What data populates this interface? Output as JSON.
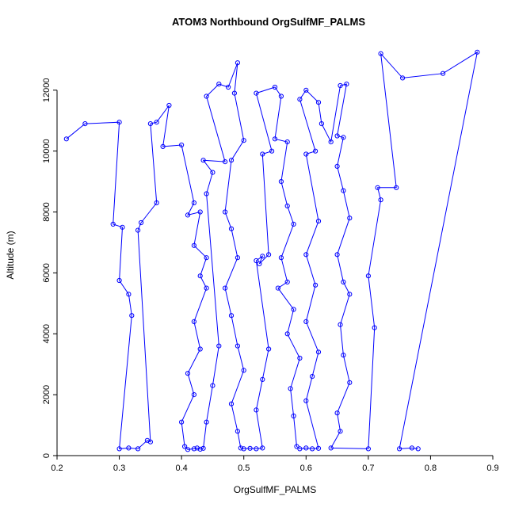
{
  "chart_data": {
    "type": "line",
    "marker": "open-circle",
    "line_color": "#0000ff",
    "title": "ATOM3 Northbound OrgSulfMF_PALMS",
    "xlabel": "OrgSulfMF_PALMS",
    "ylabel": "Altitude (m)",
    "xlim": [
      0.2,
      0.9
    ],
    "ylim": [
      0,
      13400
    ],
    "x_ticks": [
      "0.2",
      "0.3",
      "0.4",
      "0.5",
      "0.6",
      "0.7",
      "0.8",
      "0.9"
    ],
    "y_ticks": [
      "0",
      "2000",
      "4000",
      "6000",
      "8000",
      "10000",
      "12000"
    ],
    "grid": false,
    "legend": null,
    "points": [
      [
        0.215,
        10400
      ],
      [
        0.245,
        10900
      ],
      [
        0.3,
        10950
      ],
      [
        0.29,
        7600
      ],
      [
        0.305,
        7500
      ],
      [
        0.3,
        5750
      ],
      [
        0.315,
        5300
      ],
      [
        0.32,
        4600
      ],
      [
        0.3,
        225
      ],
      [
        0.315,
        250
      ],
      [
        0.33,
        225
      ],
      [
        0.345,
        500
      ],
      [
        0.35,
        450
      ],
      [
        0.33,
        7400
      ],
      [
        0.335,
        7650
      ],
      [
        0.36,
        8300
      ],
      [
        0.35,
        10900
      ],
      [
        0.36,
        10950
      ],
      [
        0.38,
        11500
      ],
      [
        0.37,
        10150
      ],
      [
        0.4,
        10200
      ],
      [
        0.42,
        8300
      ],
      [
        0.41,
        7900
      ],
      [
        0.43,
        8000
      ],
      [
        0.42,
        6900
      ],
      [
        0.44,
        6500
      ],
      [
        0.43,
        5900
      ],
      [
        0.44,
        5500
      ],
      [
        0.42,
        4400
      ],
      [
        0.43,
        3500
      ],
      [
        0.41,
        2700
      ],
      [
        0.42,
        2000
      ],
      [
        0.4,
        1100
      ],
      [
        0.405,
        300
      ],
      [
        0.41,
        200
      ],
      [
        0.42,
        225
      ],
      [
        0.425,
        250
      ],
      [
        0.43,
        210
      ],
      [
        0.435,
        240
      ],
      [
        0.44,
        1100
      ],
      [
        0.45,
        2300
      ],
      [
        0.46,
        3600
      ],
      [
        0.44,
        8600
      ],
      [
        0.45,
        9300
      ],
      [
        0.435,
        9700
      ],
      [
        0.47,
        9650
      ],
      [
        0.44,
        11800
      ],
      [
        0.46,
        12200
      ],
      [
        0.475,
        12100
      ],
      [
        0.49,
        12900
      ],
      [
        0.485,
        11900
      ],
      [
        0.5,
        10350
      ],
      [
        0.48,
        9700
      ],
      [
        0.47,
        8000
      ],
      [
        0.48,
        7450
      ],
      [
        0.49,
        6500
      ],
      [
        0.47,
        5500
      ],
      [
        0.48,
        4600
      ],
      [
        0.49,
        3600
      ],
      [
        0.5,
        2800
      ],
      [
        0.48,
        1700
      ],
      [
        0.49,
        800
      ],
      [
        0.495,
        250
      ],
      [
        0.5,
        225
      ],
      [
        0.51,
        240
      ],
      [
        0.52,
        225
      ],
      [
        0.53,
        250
      ],
      [
        0.52,
        1500
      ],
      [
        0.53,
        2500
      ],
      [
        0.54,
        3500
      ],
      [
        0.52,
        6400
      ],
      [
        0.53,
        6550
      ],
      [
        0.525,
        6300
      ],
      [
        0.54,
        6600
      ],
      [
        0.53,
        9900
      ],
      [
        0.545,
        10000
      ],
      [
        0.52,
        11900
      ],
      [
        0.55,
        12100
      ],
      [
        0.56,
        11800
      ],
      [
        0.55,
        10400
      ],
      [
        0.57,
        10300
      ],
      [
        0.56,
        9000
      ],
      [
        0.57,
        8200
      ],
      [
        0.58,
        7600
      ],
      [
        0.56,
        6500
      ],
      [
        0.57,
        5700
      ],
      [
        0.555,
        5500
      ],
      [
        0.58,
        4800
      ],
      [
        0.57,
        4000
      ],
      [
        0.59,
        3200
      ],
      [
        0.575,
        2200
      ],
      [
        0.58,
        1300
      ],
      [
        0.585,
        300
      ],
      [
        0.59,
        225
      ],
      [
        0.6,
        250
      ],
      [
        0.61,
        225
      ],
      [
        0.62,
        240
      ],
      [
        0.6,
        1800
      ],
      [
        0.61,
        2600
      ],
      [
        0.62,
        3400
      ],
      [
        0.6,
        4400
      ],
      [
        0.615,
        5600
      ],
      [
        0.6,
        6600
      ],
      [
        0.62,
        7700
      ],
      [
        0.6,
        9900
      ],
      [
        0.615,
        10000
      ],
      [
        0.59,
        11700
      ],
      [
        0.6,
        12000
      ],
      [
        0.62,
        11600
      ],
      [
        0.625,
        10900
      ],
      [
        0.64,
        10300
      ],
      [
        0.655,
        12150
      ],
      [
        0.665,
        12200
      ],
      [
        0.65,
        10500
      ],
      [
        0.66,
        10450
      ],
      [
        0.65,
        9500
      ],
      [
        0.66,
        8700
      ],
      [
        0.67,
        7800
      ],
      [
        0.65,
        6600
      ],
      [
        0.66,
        5700
      ],
      [
        0.67,
        5300
      ],
      [
        0.655,
        4300
      ],
      [
        0.66,
        3300
      ],
      [
        0.67,
        2400
      ],
      [
        0.65,
        1400
      ],
      [
        0.655,
        800
      ],
      [
        0.64,
        250
      ],
      [
        0.7,
        225
      ],
      [
        0.71,
        4200
      ],
      [
        0.7,
        5900
      ],
      [
        0.72,
        8400
      ],
      [
        0.715,
        8800
      ],
      [
        0.745,
        8800
      ],
      [
        0.72,
        13200
      ],
      [
        0.755,
        12400
      ],
      [
        0.82,
        12550
      ],
      [
        0.875,
        13250
      ],
      [
        0.75,
        225
      ],
      [
        0.77,
        250
      ],
      [
        0.78,
        225
      ]
    ]
  }
}
